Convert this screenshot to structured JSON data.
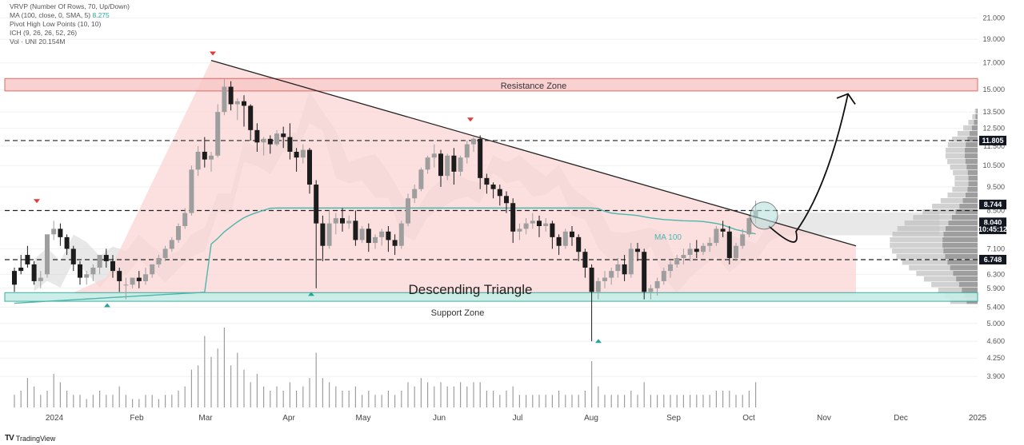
{
  "legend": {
    "vrvp": "VRVP (Number Of Rows, 70, Up/Down)",
    "ma": "MA (100, close, 0, SMA, 5)",
    "ma_value": "8.275",
    "pivot": "Pivot High Low Points (10, 10)",
    "ich": "ICH (9, 26, 26, 52, 26)",
    "vol": "Vol · UNI  20.154M"
  },
  "brand": {
    "logo": "TV",
    "name": "TradingView"
  },
  "colors": {
    "up": "#9e9e9e",
    "down": "#1c1c1c",
    "triangle_fill": "#fbd5d5",
    "resistance_fill": "#f9c9c9",
    "resistance_line": "#d9534f",
    "support_fill": "#c8ede6",
    "support_line": "#26a69a",
    "ma_line": "#4db6ac",
    "cloud": "#d6d6d6",
    "label_dark": "#131722"
  },
  "chart_data": {
    "type": "candlestick",
    "ylim": [
      3.5,
      22
    ],
    "y_ticks": [
      "21.000",
      "19.000",
      "17.000",
      "15.000",
      "13.500",
      "12.500",
      "11.500",
      "10.500",
      "9.500",
      "8.500",
      "7.100",
      "6.300",
      "5.900",
      "5.400",
      "5.000",
      "4.600",
      "4.250",
      "3.900"
    ],
    "x_labels": [
      "2024",
      "Feb",
      "Mar",
      "Apr",
      "May",
      "Jun",
      "Jul",
      "Aug",
      "Sep",
      "Oct",
      "Nov",
      "Dec",
      "2025"
    ],
    "price_labels": [
      {
        "text": "11.805",
        "value": 11.805,
        "color": "#131722"
      },
      {
        "text": "8.744",
        "value": 8.744,
        "color": "#131722"
      },
      {
        "text": "8.040",
        "value": 8.04,
        "color": "#131722"
      },
      {
        "text": "10:45:12",
        "value": 7.78,
        "color": "#131722"
      },
      {
        "text": "6.748",
        "value": 6.748,
        "color": "#131722"
      }
    ],
    "levels": [
      11.805,
      8.5,
      6.748
    ],
    "resistance_zone": {
      "label": "Resistance Zone",
      "top": 15.8,
      "bottom": 14.9
    },
    "support_zone": {
      "label": "Support Zone",
      "top": 5.78,
      "bottom": 5.55
    },
    "pattern_label": "Descending Triangle",
    "ma_label": "MA 100",
    "candles": [
      [
        6.4,
        6.5,
        6.0,
        5.8
      ],
      [
        6.5,
        6.9,
        6.4,
        6.3
      ],
      [
        6.9,
        7.2,
        6.6,
        6.5
      ],
      [
        6.6,
        6.7,
        6.1,
        6.0
      ],
      [
        6.1,
        6.4,
        6.2,
        5.9
      ],
      [
        6.3,
        6.8,
        7.6,
        6.2
      ],
      [
        7.6,
        8.1,
        7.8,
        7.4
      ],
      [
        7.8,
        8.0,
        7.5,
        7.2
      ],
      [
        7.5,
        7.6,
        7.1,
        6.9
      ],
      [
        7.1,
        7.2,
        6.6,
        6.4
      ],
      [
        6.6,
        6.7,
        6.2,
        6.0
      ],
      [
        6.2,
        6.4,
        6.3,
        6.0
      ],
      [
        6.3,
        6.6,
        6.5,
        6.1
      ],
      [
        6.5,
        6.8,
        6.9,
        6.3
      ],
      [
        6.9,
        7.1,
        6.7,
        6.5
      ],
      [
        6.7,
        6.9,
        6.4,
        6.2
      ],
      [
        6.4,
        6.5,
        6.1,
        5.8
      ],
      [
        6.0,
        6.2,
        6.0,
        5.6
      ],
      [
        6.0,
        6.2,
        6.2,
        5.9
      ],
      [
        6.2,
        6.4,
        6.1,
        5.9
      ],
      [
        6.1,
        6.5,
        6.3,
        6.0
      ],
      [
        6.3,
        6.6,
        6.6,
        6.2
      ],
      [
        6.6,
        6.9,
        6.8,
        6.5
      ],
      [
        6.8,
        7.2,
        7.1,
        6.7
      ],
      [
        7.1,
        7.5,
        7.4,
        7.0
      ],
      [
        7.4,
        8.0,
        7.9,
        7.3
      ],
      [
        7.9,
        8.6,
        8.4,
        7.8
      ],
      [
        8.4,
        10.5,
        10.3,
        8.3
      ],
      [
        10.3,
        11.5,
        11.2,
        10.0
      ],
      [
        11.2,
        12.0,
        10.8,
        10.4
      ],
      [
        10.8,
        11.2,
        11.0,
        10.2
      ],
      [
        11.0,
        14.0,
        13.5,
        10.9
      ],
      [
        13.5,
        15.8,
        15.2,
        13.3
      ],
      [
        15.2,
        15.6,
        14.0,
        13.6
      ],
      [
        14.0,
        14.4,
        14.2,
        13.0
      ],
      [
        14.2,
        14.6,
        13.9,
        12.6
      ],
      [
        13.9,
        14.0,
        12.4,
        11.8
      ],
      [
        12.4,
        12.8,
        11.7,
        11.2
      ],
      [
        11.7,
        12.0,
        11.9,
        11.0
      ],
      [
        11.9,
        12.1,
        11.6,
        11.1
      ],
      [
        11.6,
        12.4,
        12.2,
        11.5
      ],
      [
        12.2,
        12.6,
        12.0,
        11.4
      ],
      [
        12.0,
        12.8,
        11.2,
        10.8
      ],
      [
        11.2,
        11.4,
        10.9,
        10.2
      ],
      [
        10.9,
        11.6,
        11.3,
        10.6
      ],
      [
        11.3,
        11.4,
        9.6,
        9.2
      ],
      [
        9.6,
        9.8,
        8.0,
        5.9
      ],
      [
        8.0,
        8.3,
        7.2,
        6.7
      ],
      [
        7.2,
        8.5,
        8.0,
        7.1
      ],
      [
        8.0,
        8.4,
        8.2,
        7.6
      ],
      [
        8.2,
        8.6,
        8.0,
        7.7
      ],
      [
        8.0,
        8.3,
        8.1,
        7.8
      ],
      [
        8.1,
        8.5,
        7.4,
        7.2
      ],
      [
        7.4,
        7.9,
        7.8,
        7.3
      ],
      [
        7.8,
        8.0,
        7.3,
        7.0
      ],
      [
        7.3,
        7.6,
        7.5,
        7.1
      ],
      [
        7.5,
        7.8,
        7.7,
        7.2
      ],
      [
        7.7,
        7.9,
        7.4,
        7.0
      ],
      [
        7.4,
        7.6,
        7.2,
        6.9
      ],
      [
        7.2,
        8.1,
        8.0,
        7.1
      ],
      [
        8.0,
        9.2,
        9.0,
        7.9
      ],
      [
        9.0,
        9.6,
        9.4,
        8.8
      ],
      [
        9.4,
        10.4,
        10.3,
        9.3
      ],
      [
        10.3,
        11.0,
        10.9,
        10.1
      ],
      [
        10.9,
        11.6,
        11.1,
        10.4
      ],
      [
        11.1,
        11.3,
        10.0,
        9.5
      ],
      [
        10.0,
        11.1,
        11.0,
        9.8
      ],
      [
        11.0,
        11.4,
        10.2,
        9.6
      ],
      [
        10.2,
        11.0,
        10.9,
        10.0
      ],
      [
        10.9,
        11.8,
        11.6,
        10.6
      ],
      [
        11.6,
        12.0,
        11.9,
        11.2
      ],
      [
        11.9,
        12.1,
        9.9,
        9.4
      ],
      [
        9.9,
        10.1,
        9.6,
        9.2
      ],
      [
        9.6,
        9.7,
        9.4,
        9.0
      ],
      [
        9.4,
        9.6,
        9.1,
        8.7
      ],
      [
        9.1,
        9.3,
        8.8,
        8.4
      ],
      [
        8.8,
        9.0,
        7.7,
        7.3
      ],
      [
        7.7,
        8.0,
        7.8,
        7.4
      ],
      [
        7.8,
        8.2,
        8.0,
        7.6
      ],
      [
        8.0,
        8.4,
        8.1,
        7.8
      ],
      [
        8.1,
        8.3,
        7.9,
        7.5
      ],
      [
        7.9,
        8.2,
        8.0,
        7.7
      ],
      [
        8.0,
        8.1,
        7.5,
        7.1
      ],
      [
        7.5,
        7.6,
        7.2,
        6.9
      ],
      [
        7.2,
        7.8,
        7.7,
        7.1
      ],
      [
        7.7,
        7.9,
        7.5,
        7.2
      ],
      [
        7.5,
        7.6,
        7.0,
        6.7
      ],
      [
        7.0,
        7.1,
        6.5,
        6.2
      ],
      [
        6.5,
        6.6,
        5.8,
        4.6
      ],
      [
        5.8,
        6.2,
        6.1,
        5.6
      ],
      [
        6.1,
        6.4,
        6.2,
        5.9
      ],
      [
        6.2,
        6.5,
        6.4,
        6.0
      ],
      [
        6.4,
        6.8,
        6.6,
        6.2
      ],
      [
        6.6,
        6.9,
        6.3,
        6.1
      ],
      [
        6.3,
        7.3,
        7.1,
        6.2
      ],
      [
        7.1,
        7.3,
        7.0,
        6.7
      ],
      [
        7.0,
        7.1,
        5.8,
        5.6
      ],
      [
        5.8,
        6.0,
        5.9,
        5.6
      ],
      [
        5.9,
        6.2,
        6.1,
        5.7
      ],
      [
        6.1,
        6.5,
        6.4,
        6.0
      ],
      [
        6.4,
        6.7,
        6.6,
        6.2
      ],
      [
        6.6,
        6.9,
        6.8,
        6.5
      ],
      [
        6.8,
        7.1,
        6.9,
        6.6
      ],
      [
        6.9,
        7.3,
        7.1,
        6.7
      ],
      [
        7.1,
        7.4,
        7.0,
        6.8
      ],
      [
        7.0,
        7.3,
        7.2,
        6.9
      ],
      [
        7.2,
        7.5,
        7.3,
        7.0
      ],
      [
        7.3,
        7.9,
        7.8,
        7.2
      ],
      [
        7.8,
        8.1,
        7.7,
        7.5
      ],
      [
        7.7,
        7.9,
        6.8,
        6.6
      ],
      [
        6.8,
        7.3,
        7.2,
        6.7
      ],
      [
        7.2,
        7.8,
        7.6,
        7.1
      ],
      [
        7.6,
        8.3,
        8.2,
        7.5
      ],
      [
        8.2,
        8.9,
        8.5,
        8.0
      ]
    ],
    "volumes": [
      0.3,
      0.4,
      0.7,
      0.5,
      0.3,
      0.4,
      0.8,
      0.6,
      0.4,
      0.3,
      0.3,
      0.2,
      0.3,
      0.4,
      0.3,
      0.3,
      0.5,
      0.3,
      0.2,
      0.2,
      0.3,
      0.3,
      0.2,
      0.3,
      0.3,
      0.4,
      0.5,
      0.9,
      1.0,
      1.7,
      1.2,
      1.4,
      1.9,
      1.0,
      1.3,
      0.9,
      0.6,
      0.8,
      0.5,
      0.4,
      0.5,
      0.4,
      0.6,
      0.4,
      0.5,
      0.7,
      1.3,
      0.7,
      0.6,
      0.5,
      0.4,
      0.4,
      0.5,
      0.3,
      0.4,
      0.3,
      0.3,
      0.4,
      0.3,
      0.4,
      0.6,
      0.5,
      0.7,
      0.6,
      0.5,
      0.6,
      0.5,
      0.5,
      0.6,
      0.5,
      0.6,
      0.6,
      0.4,
      0.4,
      0.3,
      0.4,
      0.5,
      0.3,
      0.3,
      0.3,
      0.3,
      0.3,
      0.3,
      0.4,
      0.3,
      0.3,
      0.3,
      0.4,
      1.1,
      0.5,
      0.3,
      0.3,
      0.3,
      0.3,
      0.4,
      0.3,
      0.6,
      0.3,
      0.3,
      0.3,
      0.3,
      0.3,
      0.3,
      0.3,
      0.3,
      0.3,
      0.3,
      0.4,
      0.4,
      0.4,
      0.3,
      0.3,
      0.4,
      0.6
    ]
  }
}
